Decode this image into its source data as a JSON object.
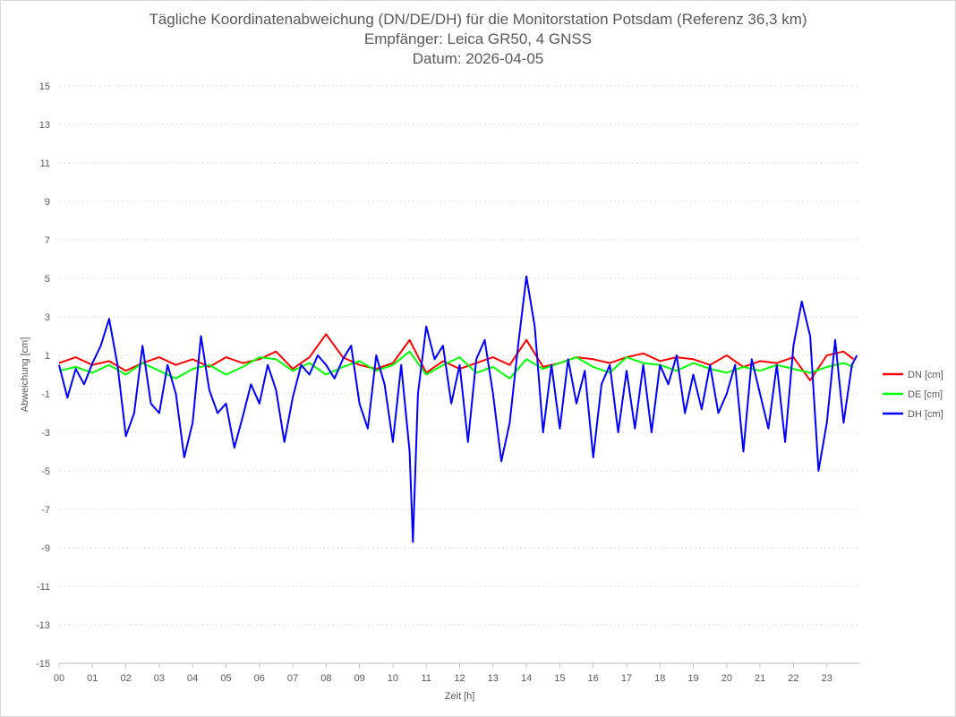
{
  "chart_data": {
    "type": "line",
    "title_lines": [
      "Tägliche Koordinatenabweichung (DN/DE/DH) für die Monitorstation Potsdam (Referenz 36,3 km)",
      "Empfänger: Leica GR50, 4 GNSS",
      "Datum: 2026-04-05"
    ],
    "xlabel": "Zeit [h]",
    "ylabel": "Abweichung [cm]",
    "xlim": [
      0,
      24
    ],
    "ylim": [
      -15,
      15
    ],
    "x_ticks": [
      "00",
      "01",
      "02",
      "03",
      "04",
      "05",
      "06",
      "07",
      "08",
      "09",
      "10",
      "11",
      "12",
      "13",
      "14",
      "15",
      "16",
      "17",
      "18",
      "19",
      "20",
      "21",
      "22",
      "23"
    ],
    "y_ticks": [
      15,
      13,
      11,
      9,
      7,
      5,
      3,
      1,
      -1,
      -3,
      -5,
      -7,
      -9,
      -11,
      -13,
      -15
    ],
    "y_tick_labels": [
      "15",
      "13",
      "11",
      "9",
      "7",
      "5",
      "3",
      "1",
      "-1",
      "-3",
      "-5",
      "-7",
      "-9",
      "-11",
      "-13",
      "-15"
    ],
    "grid": "horizontal dotted",
    "legend_position": "right",
    "series": [
      {
        "name": "DN [cm]",
        "color": "#ff0000",
        "x": [
          0,
          0.5,
          1,
          1.5,
          2,
          2.5,
          3,
          3.5,
          4,
          4.5,
          5,
          5.5,
          6,
          6.5,
          7,
          7.5,
          8,
          8.5,
          9,
          9.5,
          10,
          10.5,
          11,
          11.5,
          12,
          12.5,
          13,
          13.5,
          14,
          14.5,
          15,
          15.5,
          16,
          16.5,
          17,
          17.5,
          18,
          18.5,
          19,
          19.5,
          20,
          20.5,
          21,
          21.5,
          22,
          22.5,
          23,
          23.5,
          23.8
        ],
        "values": [
          0.6,
          0.9,
          0.5,
          0.7,
          0.2,
          0.6,
          0.9,
          0.5,
          0.8,
          0.4,
          0.9,
          0.6,
          0.8,
          1.2,
          0.3,
          0.9,
          2.1,
          0.9,
          0.5,
          0.3,
          0.6,
          1.8,
          0.1,
          0.7,
          0.3,
          0.6,
          0.9,
          0.5,
          1.8,
          0.4,
          0.6,
          0.9,
          0.8,
          0.6,
          0.9,
          1.1,
          0.7,
          0.9,
          0.8,
          0.5,
          1.0,
          0.4,
          0.7,
          0.6,
          0.9,
          -0.3,
          1.0,
          1.2,
          0.8
        ]
      },
      {
        "name": "DE [cm]",
        "color": "#00ff00",
        "x": [
          0,
          0.5,
          1,
          1.5,
          2,
          2.5,
          3,
          3.5,
          4,
          4.5,
          5,
          5.5,
          6,
          6.5,
          7,
          7.5,
          8,
          8.5,
          9,
          9.5,
          10,
          10.5,
          11,
          11.5,
          12,
          12.5,
          13,
          13.5,
          14,
          14.5,
          15,
          15.5,
          16,
          16.5,
          17,
          17.5,
          18,
          18.5,
          19,
          19.5,
          20,
          20.5,
          21,
          21.5,
          22,
          22.5,
          23,
          23.5,
          23.8
        ],
        "values": [
          0.2,
          0.4,
          0.1,
          0.5,
          0.0,
          0.6,
          0.2,
          -0.2,
          0.3,
          0.5,
          0.0,
          0.4,
          0.9,
          0.8,
          0.2,
          0.6,
          0.0,
          0.4,
          0.7,
          0.2,
          0.5,
          1.2,
          0.0,
          0.5,
          0.9,
          0.1,
          0.4,
          -0.2,
          0.8,
          0.3,
          0.6,
          0.9,
          0.4,
          0.1,
          0.9,
          0.6,
          0.5,
          0.2,
          0.6,
          0.3,
          0.1,
          0.4,
          0.2,
          0.5,
          0.3,
          0.1,
          0.4,
          0.6,
          0.4
        ]
      },
      {
        "name": "DH [cm]",
        "color": "#0000ff",
        "x": [
          0,
          0.25,
          0.5,
          0.75,
          1,
          1.25,
          1.5,
          1.75,
          2,
          2.25,
          2.5,
          2.75,
          3,
          3.25,
          3.5,
          3.75,
          4,
          4.25,
          4.5,
          4.75,
          5,
          5.25,
          5.5,
          5.75,
          6,
          6.25,
          6.5,
          6.75,
          7,
          7.25,
          7.5,
          7.75,
          8,
          8.25,
          8.5,
          8.75,
          9,
          9.25,
          9.5,
          9.75,
          10,
          10.25,
          10.5,
          10.6,
          10.75,
          11,
          11.25,
          11.5,
          11.75,
          12,
          12.25,
          12.5,
          12.75,
          13,
          13.25,
          13.5,
          13.75,
          14,
          14.25,
          14.5,
          14.75,
          15,
          15.25,
          15.5,
          15.75,
          16,
          16.25,
          16.5,
          16.75,
          17,
          17.25,
          17.5,
          17.75,
          18,
          18.25,
          18.5,
          18.75,
          19,
          19.25,
          19.5,
          19.75,
          20,
          20.25,
          20.5,
          20.75,
          21,
          21.25,
          21.5,
          21.75,
          22,
          22.25,
          22.5,
          22.75,
          23,
          23.25,
          23.5,
          23.75,
          23.9
        ],
        "values": [
          0.5,
          -1.2,
          0.3,
          -0.5,
          0.6,
          1.5,
          2.9,
          0.5,
          -3.2,
          -2.0,
          1.5,
          -1.5,
          -2.0,
          0.5,
          -1.0,
          -4.3,
          -2.5,
          2.0,
          -0.8,
          -2.0,
          -1.5,
          -3.8,
          -2.2,
          -0.5,
          -1.5,
          0.5,
          -0.8,
          -3.5,
          -1.2,
          0.5,
          0.0,
          1.0,
          0.5,
          -0.2,
          0.8,
          1.5,
          -1.5,
          -2.8,
          1.0,
          -0.5,
          -3.5,
          0.5,
          -4.0,
          -8.7,
          -1.0,
          2.5,
          0.8,
          1.5,
          -1.5,
          0.5,
          -3.5,
          0.8,
          1.8,
          -1.0,
          -4.5,
          -2.5,
          1.5,
          5.1,
          2.5,
          -3.0,
          0.5,
          -2.8,
          0.8,
          -1.5,
          0.2,
          -4.3,
          -0.5,
          0.5,
          -3.0,
          0.2,
          -2.8,
          0.5,
          -3.0,
          0.5,
          -0.5,
          1.0,
          -2.0,
          0.0,
          -1.8,
          0.5,
          -2.0,
          -1.0,
          0.5,
          -4.0,
          0.8,
          -1.0,
          -2.8,
          0.5,
          -3.5,
          1.5,
          3.8,
          2.0,
          -5.0,
          -2.5,
          1.8,
          -2.5,
          0.5,
          1.0
        ]
      }
    ]
  }
}
